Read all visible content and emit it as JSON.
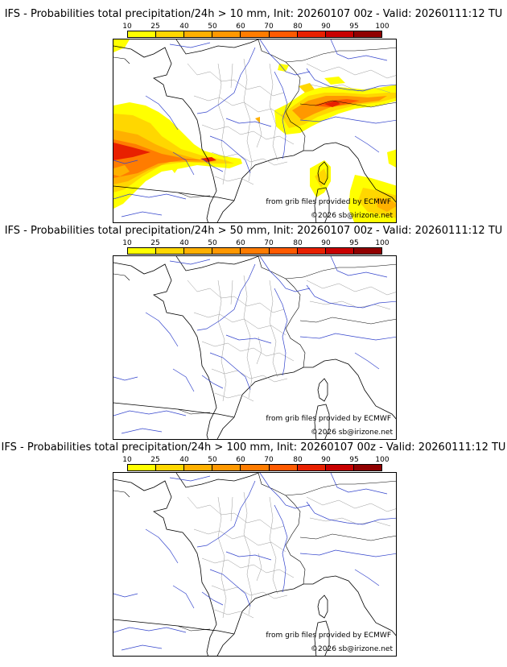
{
  "scale_levels": [
    "10",
    "25",
    "40",
    "50",
    "60",
    "70",
    "80",
    "90",
    "95",
    "100"
  ],
  "scale_colors": [
    "#ffff00",
    "#ffd700",
    "#ffb000",
    "#ff9800",
    "#ff7c00",
    "#ff5a00",
    "#e82000",
    "#c80000",
    "#900000",
    "#600000"
  ],
  "credit_source": "from grib files provided by ECMWF",
  "credit_copyright": "©2026 sb@irizone.net",
  "panels": [
    {
      "title": "IFS - Probabilities total precipitation/24h > 10 mm, Init: 20260107 00z - Valid: 20260111:12 TU"
    },
    {
      "title": "IFS - Probabilities total precipitation/24h > 50 mm, Init: 20260107 00z - Valid: 20260111:12 TU"
    },
    {
      "title": "IFS - Probabilities total precipitation/24h > 100 mm, Init: 20260107 00z - Valid: 20260111:12 TU"
    }
  ]
}
